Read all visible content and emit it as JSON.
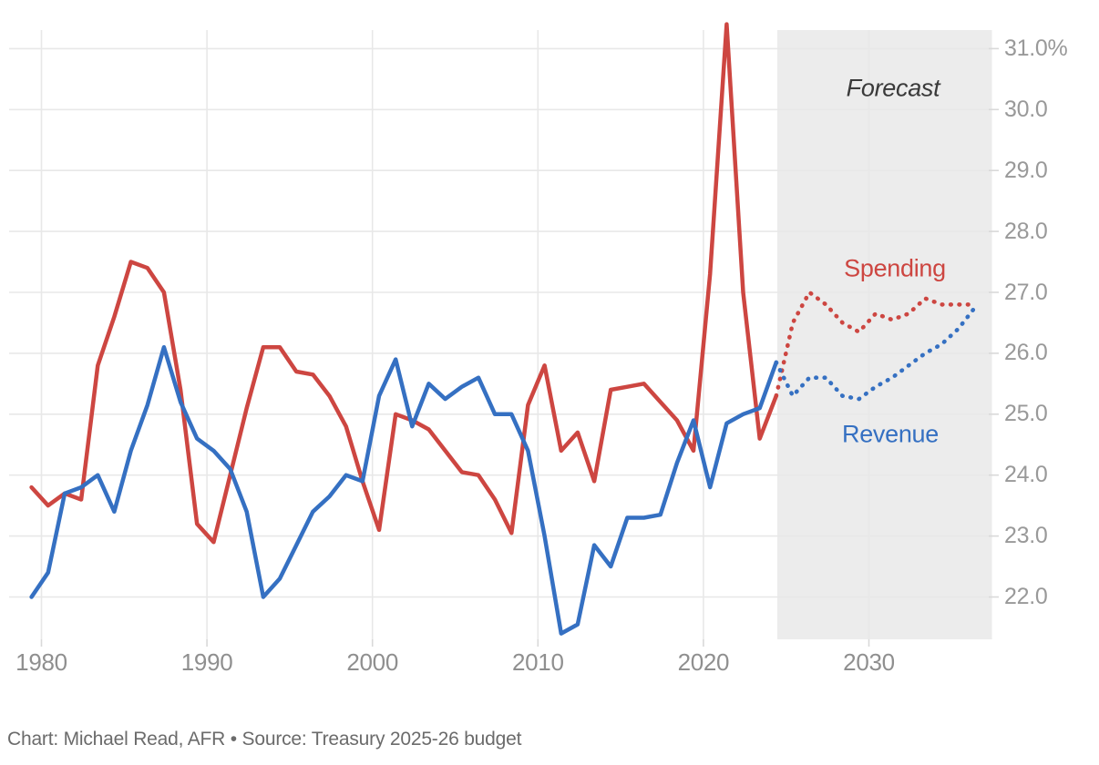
{
  "chart_data": {
    "type": "line",
    "title": "",
    "grid": true,
    "legend_position": "inline-annotations",
    "axes": {
      "y_range": [
        21.3,
        31.35
      ],
      "x_range": [
        1979,
        2037
      ],
      "y_ticks": [
        {
          "value": 31.0,
          "label": "31.0%"
        },
        {
          "value": 30.0,
          "label": "30.0"
        },
        {
          "value": 29.0,
          "label": "29.0"
        },
        {
          "value": 28.0,
          "label": "28.0"
        },
        {
          "value": 27.0,
          "label": "27.0"
        },
        {
          "value": 26.0,
          "label": "26.0"
        },
        {
          "value": 25.0,
          "label": "25.0"
        },
        {
          "value": 24.0,
          "label": "24.0"
        },
        {
          "value": 23.0,
          "label": "23.0"
        },
        {
          "value": 22.0,
          "label": "22.0"
        }
      ],
      "x_ticks": [
        {
          "year": 1980,
          "label": "1980"
        },
        {
          "year": 1990,
          "label": "1990"
        },
        {
          "year": 2000,
          "label": "2000"
        },
        {
          "year": 2010,
          "label": "2010"
        },
        {
          "year": 2020,
          "label": "2020"
        },
        {
          "year": 2030,
          "label": "2030"
        }
      ]
    },
    "forecast_region": {
      "start_year": 2024,
      "end_year": 2037
    },
    "annotations": {
      "forecast": "Forecast",
      "spending": "Spending",
      "revenue": "Revenue"
    },
    "series": [
      {
        "name": "Spending",
        "color": "#cd4641",
        "actual": {
          "start_year": 1979,
          "values": [
            23.8,
            23.5,
            23.7,
            23.6,
            25.8,
            26.6,
            27.5,
            27.4,
            27.0,
            25.4,
            23.2,
            22.9,
            24.0,
            25.1,
            26.1,
            26.1,
            25.7,
            25.65,
            25.3,
            24.8,
            23.9,
            23.1,
            25.0,
            24.9,
            24.75,
            24.4,
            24.05,
            24.0,
            23.6,
            23.05,
            25.15,
            25.8,
            24.4,
            24.7,
            23.9,
            25.4,
            25.45,
            25.5,
            25.2,
            24.9,
            24.4,
            27.3,
            31.4,
            27.0,
            24.6,
            25.3
          ]
        },
        "forecast": {
          "start_year": 2024,
          "values": [
            25.3,
            26.5,
            27.0,
            26.8,
            26.5,
            26.35,
            26.65,
            26.55,
            26.65,
            26.9,
            26.8,
            26.8,
            26.8
          ]
        }
      },
      {
        "name": "Revenue",
        "color": "#3570c2",
        "actual": {
          "start_year": 1979,
          "values": [
            22.0,
            22.4,
            23.7,
            23.8,
            24.0,
            23.4,
            24.4,
            25.15,
            26.1,
            25.2,
            24.6,
            24.4,
            24.1,
            23.4,
            22.0,
            22.3,
            22.85,
            23.4,
            23.65,
            24.0,
            23.9,
            25.3,
            25.9,
            24.8,
            25.5,
            25.25,
            25.45,
            25.6,
            25.0,
            25.0,
            24.4,
            23.0,
            21.4,
            21.55,
            22.85,
            22.5,
            23.3,
            23.3,
            23.35,
            24.2,
            24.9,
            23.8,
            24.85,
            25.0,
            25.1,
            25.85
          ]
        },
        "forecast": {
          "start_year": 2024,
          "values": [
            25.85,
            25.3,
            25.6,
            25.6,
            25.3,
            25.25,
            25.45,
            25.6,
            25.8,
            26.0,
            26.15,
            26.4,
            26.75
          ]
        }
      }
    ],
    "source": "Chart: Michael Read, AFR • Source: Treasury 2025-26 budget",
    "colors": {
      "spending": "#cd4641",
      "revenue": "#3570c2",
      "grid": "#e8e8e8",
      "tick_dash": "#d9d9d9",
      "forecast_bg": "#ececec",
      "axis_text": "#999999",
      "x_axis_text": "#8f8f8f",
      "forecast_text": "#3a3a3a",
      "source_text": "#6b6b6b"
    }
  }
}
